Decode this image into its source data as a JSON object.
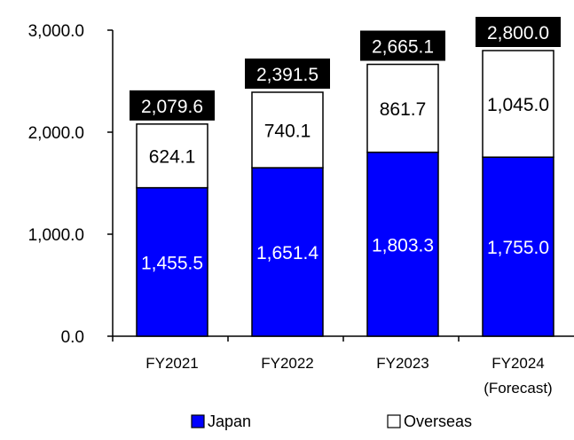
{
  "chart_data": {
    "type": "bar",
    "stacked": true,
    "categories": [
      "FY2021",
      "FY2022",
      "FY2023",
      "FY2024"
    ],
    "category_sublabels": [
      "",
      "",
      "",
      "(Forecast)"
    ],
    "series": [
      {
        "name": "Japan",
        "values": [
          1455.5,
          1651.4,
          1803.3,
          1755.0
        ],
        "labels": [
          "1,455.5",
          "1,651.4",
          "1,803.3",
          "1,755.0"
        ],
        "color": "#0000ff",
        "label_color": "#ffffff"
      },
      {
        "name": "Overseas",
        "values": [
          624.1,
          740.1,
          861.7,
          1045.0
        ],
        "labels": [
          "624.1",
          "740.1",
          "861.7",
          "1,045.0"
        ],
        "color": "#ffffff",
        "label_color": "#000000"
      }
    ],
    "totals": [
      2079.6,
      2391.5,
      2665.1,
      2800.0
    ],
    "total_labels": [
      "2,079.6",
      "2,391.5",
      "2,665.1",
      "2,800.0"
    ],
    "total_label_bg": "#000000",
    "ylim": [
      0,
      3000
    ],
    "yticks": [
      0,
      1000,
      2000,
      3000
    ],
    "ytick_labels": [
      "0.0",
      "1,000.0",
      "2,000.0",
      "3,000.0"
    ],
    "grid": false,
    "legend": {
      "placement": "bottom",
      "entries": [
        "Japan",
        "Overseas"
      ]
    },
    "title": "",
    "xlabel": "",
    "ylabel": ""
  }
}
